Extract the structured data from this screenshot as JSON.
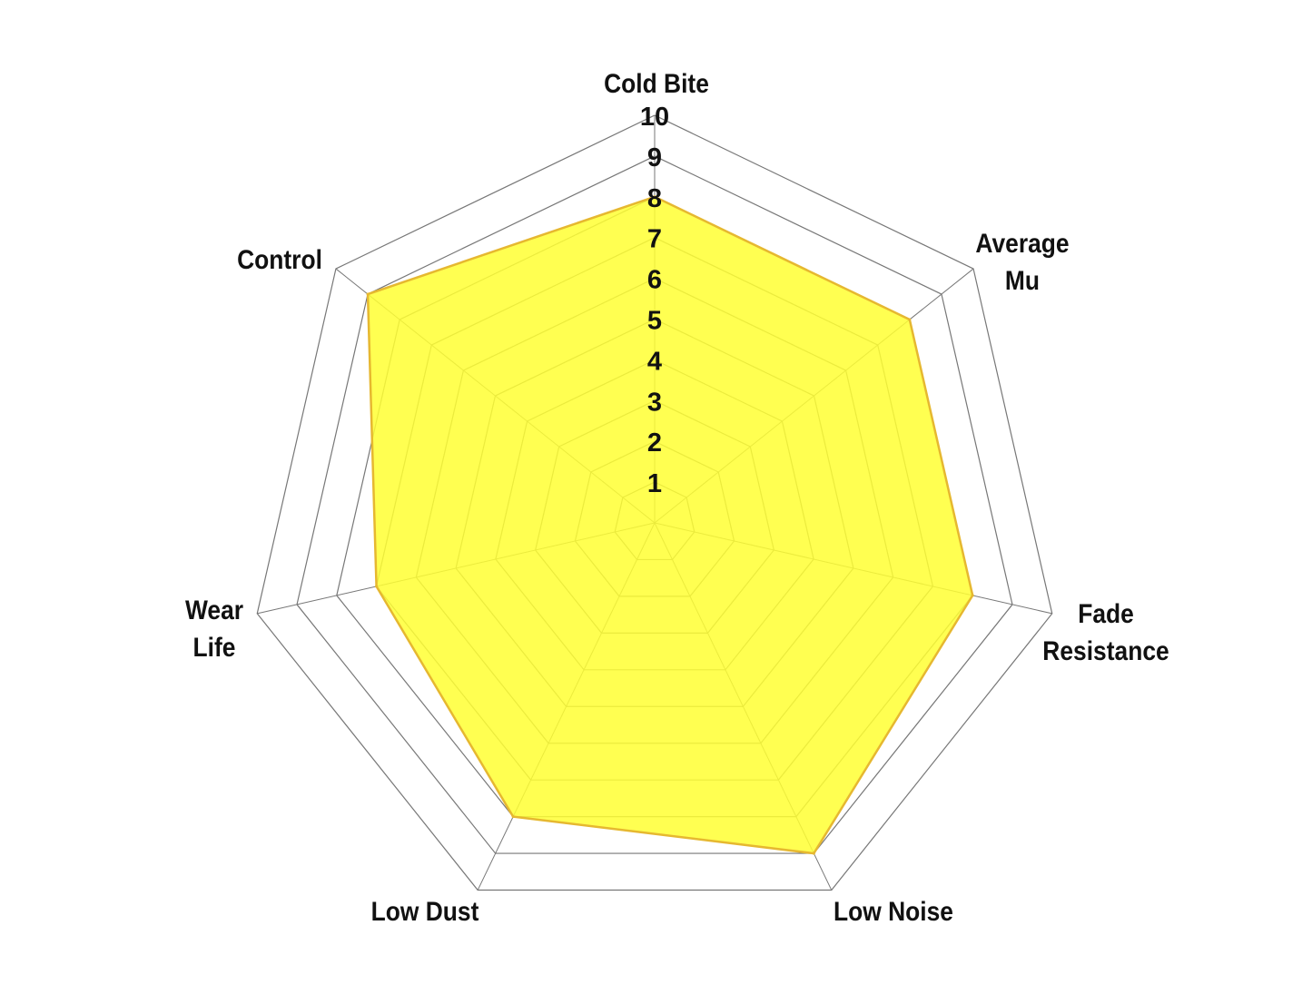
{
  "chart_data": {
    "type": "radar",
    "categories": [
      "Cold Bite",
      "Average Mu",
      "Fade Resistance",
      "Low Noise",
      "Low Dust",
      "Wear Life",
      "Control"
    ],
    "category_lines": [
      [
        "Cold Bite"
      ],
      [
        "Average",
        "Mu"
      ],
      [
        "Fade",
        "Resistance"
      ],
      [
        "Low Noise"
      ],
      [
        "Low Dust"
      ],
      [
        "Wear",
        "Life"
      ],
      [
        "Control"
      ]
    ],
    "values": [
      8,
      8,
      8,
      9,
      8,
      7,
      9
    ],
    "rlim": [
      0,
      10
    ],
    "ticks": [
      "1",
      "2",
      "3",
      "4",
      "5",
      "6",
      "7",
      "8",
      "9",
      "10"
    ],
    "grid": true,
    "legend": "none",
    "fill_color": "#ffff33",
    "line_color": "#e6b830",
    "grid_color": "#777777"
  }
}
